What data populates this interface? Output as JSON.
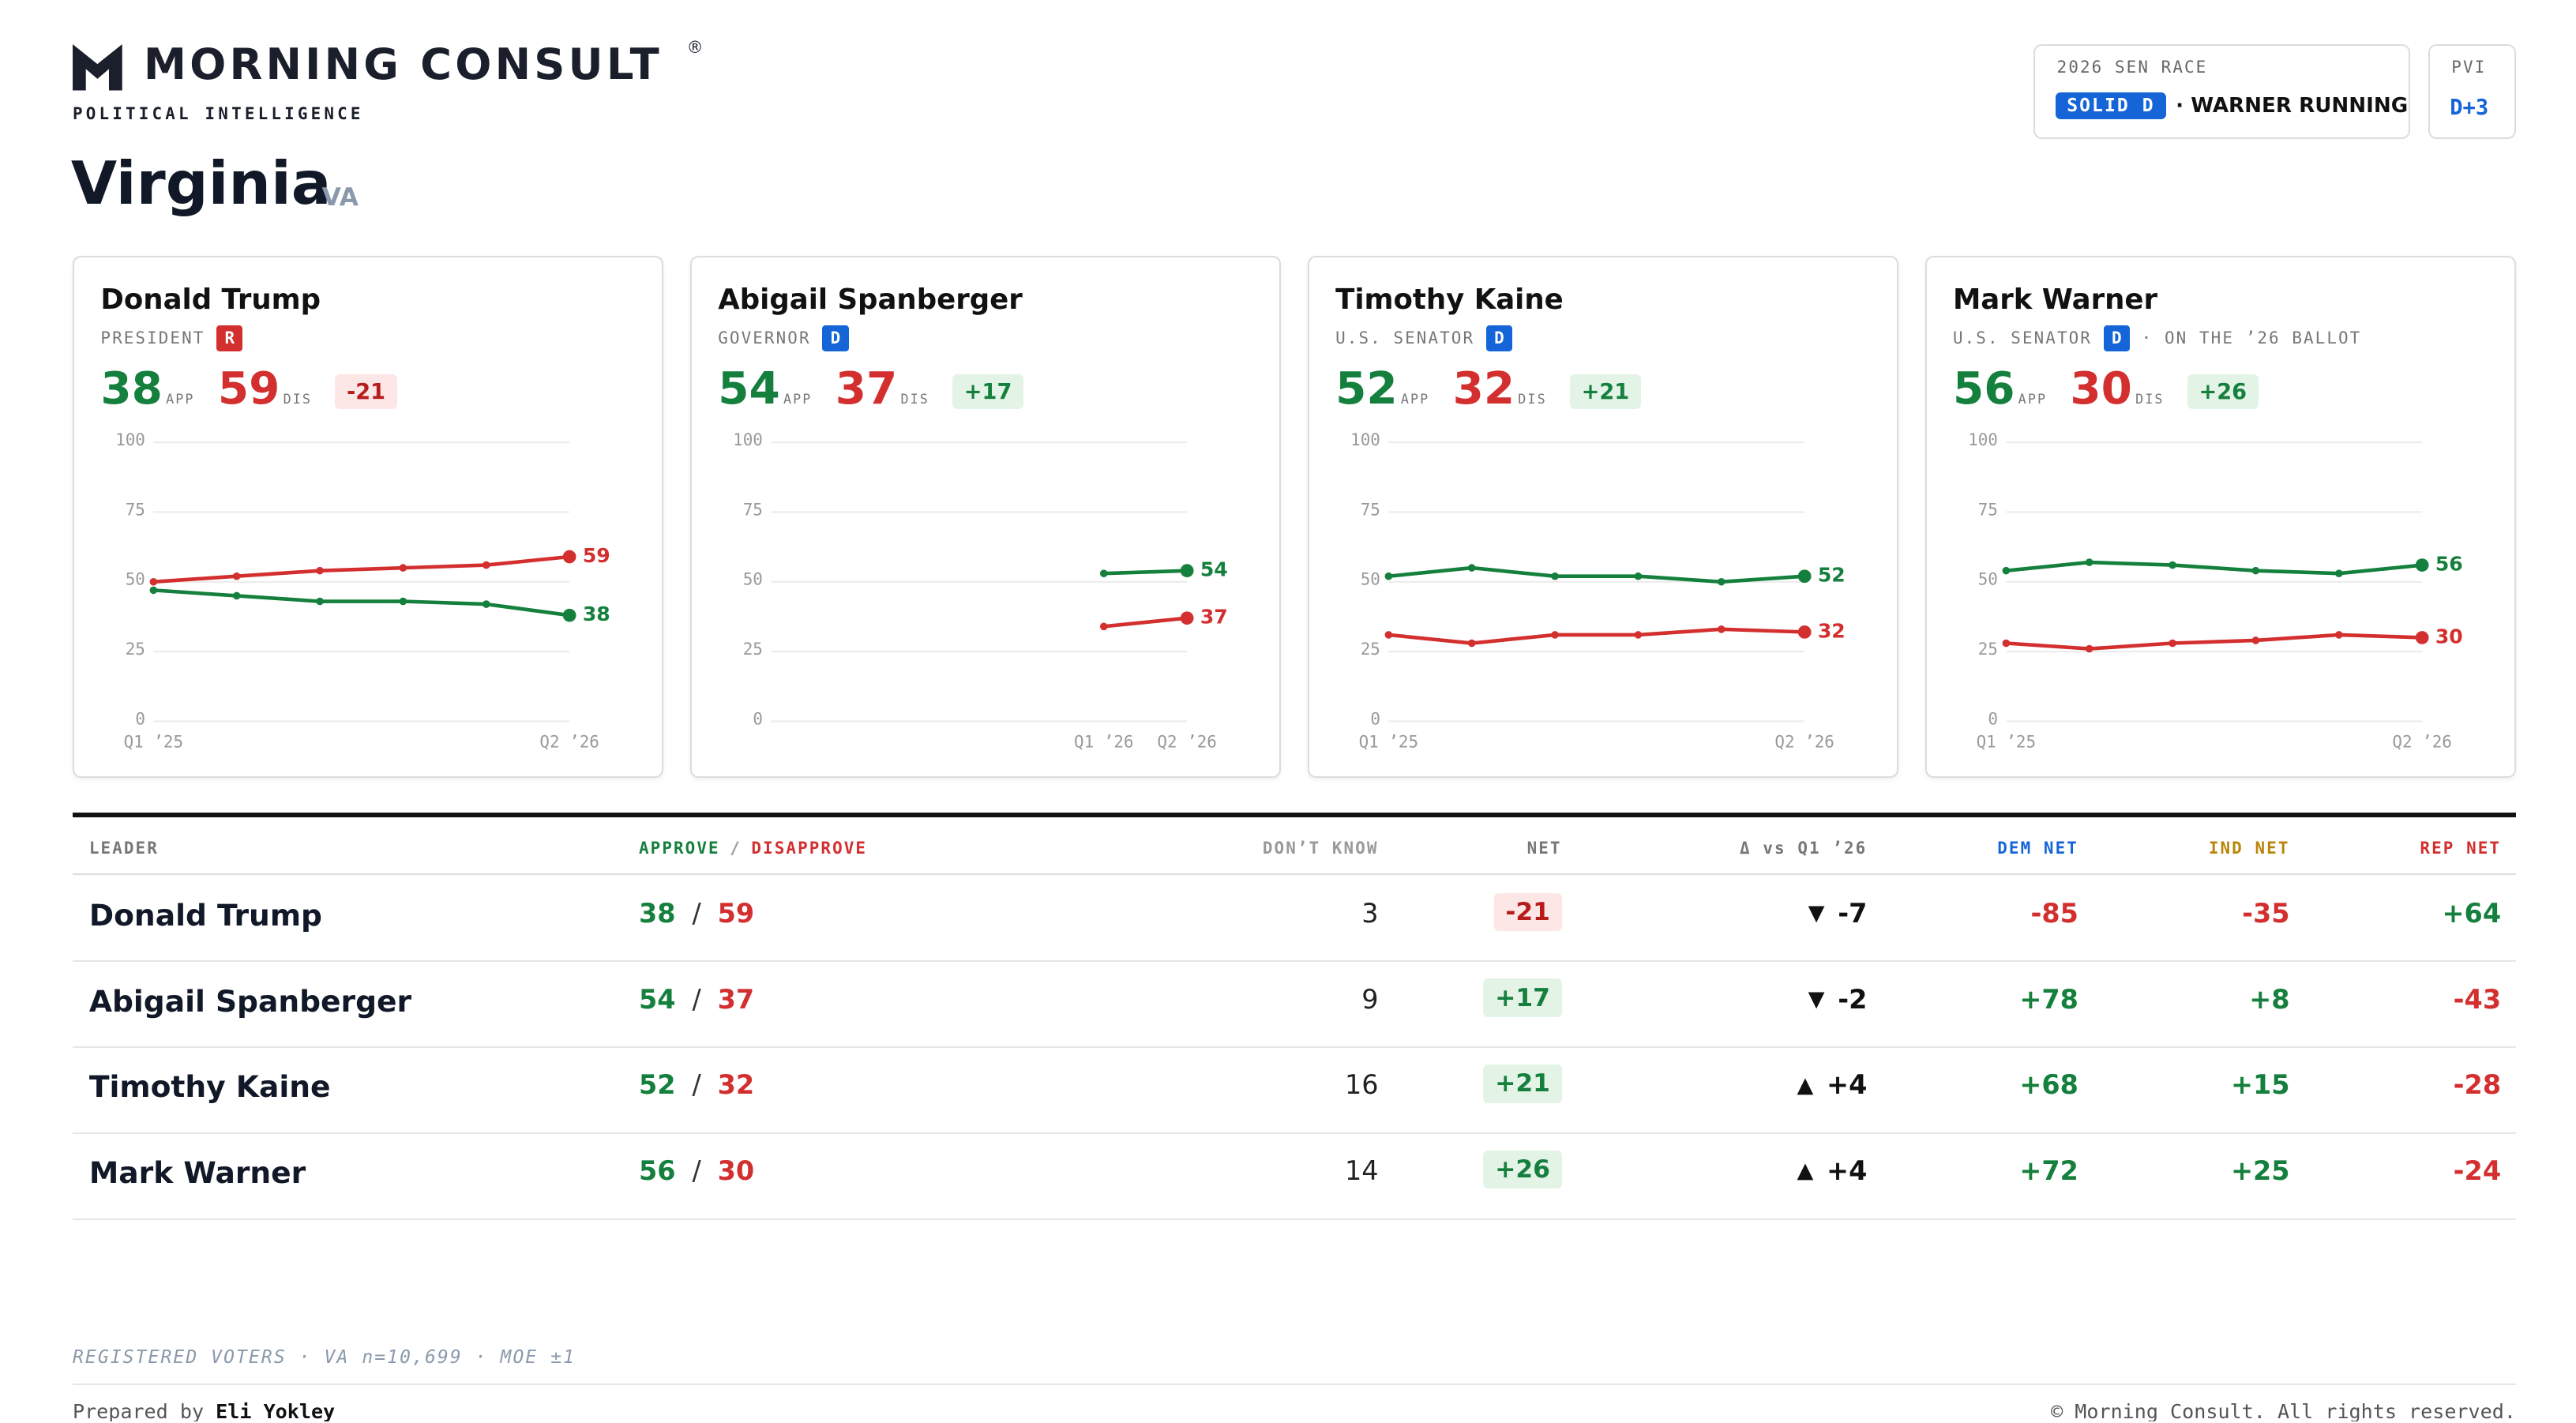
{
  "header": {
    "brand": "MORNING CONSULT",
    "registered": "®",
    "tagline": "POLITICAL INTELLIGENCE",
    "title": "Virginia",
    "state": "VA",
    "race": {
      "label": "2026 SEN RACE",
      "rating": "SOLID D",
      "note": "· WARNER RUNNING"
    },
    "pvi": {
      "label": "PVI",
      "value": "D+3"
    }
  },
  "cards": [
    {
      "name": "Donald Trump",
      "role": "PRESIDENT",
      "party": "R",
      "party_color": "#d32f2f",
      "approve": 38,
      "approve_label": "APP",
      "disapprove": 59,
      "disapprove_label": "DIS",
      "net": "-21"
    },
    {
      "name": "Abigail Spanberger",
      "role": "GOVERNOR",
      "party": "D",
      "party_color": "#1565d8",
      "approve": 54,
      "approve_label": "APP",
      "disapprove": 37,
      "disapprove_label": "DIS",
      "net": "+17"
    },
    {
      "name": "Timothy Kaine",
      "role": "U.S. SENATOR",
      "party": "D",
      "party_color": "#1565d8",
      "approve": 52,
      "approve_label": "APP",
      "disapprove": 32,
      "disapprove_label": "DIS",
      "net": "+21"
    },
    {
      "name": "Mark Warner",
      "role": "U.S. SENATOR",
      "party": "D",
      "party_color": "#1565d8",
      "note": "· ON THE ’26 BALLOT",
      "approve": 56,
      "approve_label": "APP",
      "disapprove": 30,
      "disapprove_label": "DIS",
      "net": "+26"
    }
  ],
  "chart_data": [
    {
      "type": "line",
      "categories": [
        "Q1 ’25",
        null,
        null,
        null,
        null,
        "Q2 ’26"
      ],
      "ylim": [
        0,
        100
      ],
      "yticks": [
        0,
        25,
        50,
        75,
        100
      ],
      "grid": true,
      "series": [
        {
          "color": "#15803d",
          "values": [
            47,
            45,
            43,
            43,
            42,
            38
          ]
        },
        {
          "color": "#d32f2f",
          "values": [
            50,
            52,
            54,
            55,
            56,
            59
          ]
        }
      ]
    },
    {
      "type": "line",
      "categories": [
        null,
        null,
        null,
        null,
        "Q1 ’26",
        "Q2 ’26"
      ],
      "ylim": [
        0,
        100
      ],
      "yticks": [
        0,
        25,
        50,
        75,
        100
      ],
      "grid": true,
      "series": [
        {
          "color": "#15803d",
          "values": [
            null,
            null,
            null,
            null,
            53,
            54
          ]
        },
        {
          "color": "#d32f2f",
          "values": [
            null,
            null,
            null,
            null,
            34,
            37
          ]
        }
      ]
    },
    {
      "type": "line",
      "categories": [
        "Q1 ’25",
        null,
        null,
        null,
        null,
        "Q2 ’26"
      ],
      "ylim": [
        0,
        100
      ],
      "yticks": [
        0,
        25,
        50,
        75,
        100
      ],
      "grid": true,
      "series": [
        {
          "color": "#15803d",
          "values": [
            52,
            55,
            52,
            52,
            50,
            52
          ]
        },
        {
          "color": "#d32f2f",
          "values": [
            31,
            28,
            31,
            31,
            33,
            32
          ]
        }
      ]
    },
    {
      "type": "line",
      "categories": [
        "Q1 ’25",
        null,
        null,
        null,
        null,
        "Q2 ’26"
      ],
      "ylim": [
        0,
        100
      ],
      "yticks": [
        0,
        25,
        50,
        75,
        100
      ],
      "grid": true,
      "series": [
        {
          "color": "#15803d",
          "values": [
            54,
            57,
            56,
            54,
            53,
            56
          ]
        },
        {
          "color": "#d32f2f",
          "values": [
            28,
            26,
            28,
            29,
            31,
            30
          ]
        }
      ]
    }
  ],
  "table": {
    "header": {
      "leader": "LEADER",
      "approve": "APPROVE",
      "slash": "/",
      "disapprove": "DISAPPROVE",
      "dont_know": "DON’T KNOW",
      "net": "NET",
      "delta": "Δ vs Q1 ’26",
      "dem": "DEM NET",
      "ind": "IND NET",
      "rep": "REP NET"
    },
    "separator": "/",
    "rows": [
      {
        "leader": "Donald Trump",
        "approve": 38,
        "disapprove": 59,
        "dont_know": 3,
        "net": "-21",
        "delta_arrow": "▼",
        "delta": "-7",
        "dem": "-85",
        "ind": "-35",
        "rep": "+64"
      },
      {
        "leader": "Abigail Spanberger",
        "approve": 54,
        "disapprove": 37,
        "dont_know": 9,
        "net": "+17",
        "delta_arrow": "▼",
        "delta": "-2",
        "dem": "+78",
        "ind": "+8",
        "rep": "-43"
      },
      {
        "leader": "Timothy Kaine",
        "approve": 52,
        "disapprove": 32,
        "dont_know": 16,
        "net": "+21",
        "delta_arrow": "▲",
        "delta": "+4",
        "dem": "+68",
        "ind": "+15",
        "rep": "-28"
      },
      {
        "leader": "Mark Warner",
        "approve": 56,
        "disapprove": 30,
        "dont_know": 14,
        "net": "+26",
        "delta_arrow": "▲",
        "delta": "+4",
        "dem": "+72",
        "ind": "+25",
        "rep": "-24"
      }
    ]
  },
  "footer": {
    "sample": "REGISTERED VOTERS · VA n=10,699 · MOE ±1",
    "prepared": "Prepared by",
    "author": "Eli Yokley",
    "copyright": "© Morning Consult. All rights reserved."
  }
}
